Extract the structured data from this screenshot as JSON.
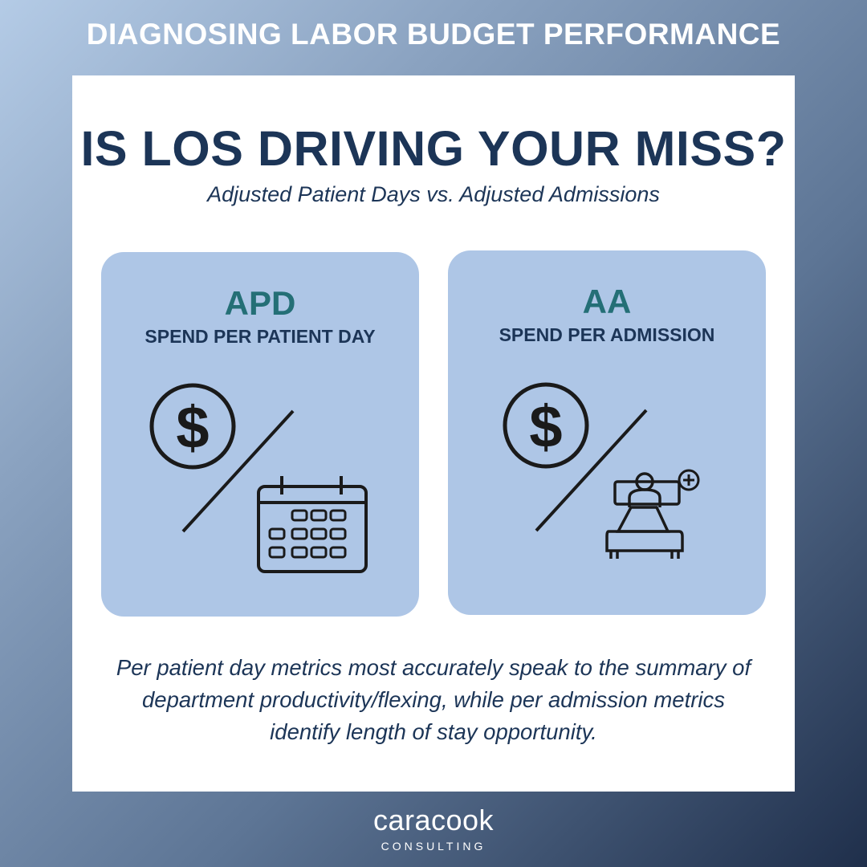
{
  "banner": {
    "title": "DIAGNOSING LABOR BUDGET PERFORMANCE"
  },
  "card": {
    "headline": "IS LOS DRIVING YOUR MISS?",
    "subhead": "Adjusted Patient Days vs. Adjusted Admissions",
    "panels": [
      {
        "abbr": "APD",
        "label": "SPEND PER PATIENT DAY",
        "icons": [
          "dollar-circle-icon",
          "calendar-icon"
        ]
      },
      {
        "abbr": "AA",
        "label": "SPEND PER ADMISSION",
        "icons": [
          "dollar-circle-icon",
          "patient-bed-plus-icon"
        ]
      }
    ],
    "body": "Per patient day metrics most accurately speak to the summary of department productivity/flexing, while per admission metrics identify length of stay opportunity."
  },
  "brand": {
    "name": "caracook",
    "sub": "CONSULTING"
  },
  "icons": {
    "dollar_symbol": "$"
  },
  "colors": {
    "headline": "#1c3557",
    "accent_teal": "#246f76",
    "panel_bg": "#aec6e6",
    "icon_stroke": "#1a1a1a"
  }
}
